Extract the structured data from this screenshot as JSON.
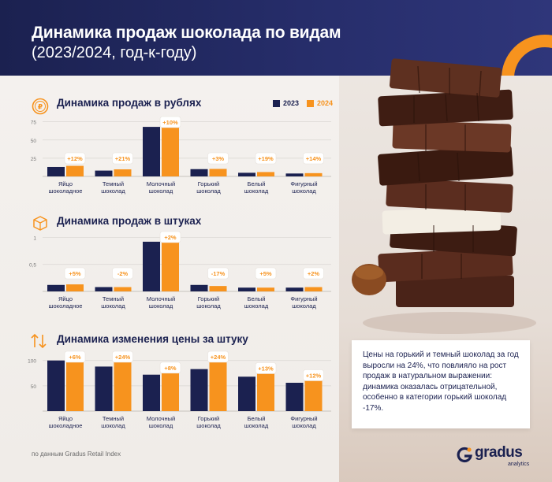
{
  "header": {
    "title_line1": "Динамика продаж шоколада по видам",
    "title_line2": "(2023/2024, год-к-году)"
  },
  "legend": {
    "label_2023": "2023",
    "label_2024": "2024"
  },
  "colors": {
    "navy": "#1b2150",
    "orange": "#f7931e",
    "grid": "#d9d6d2",
    "badge_text": "#f7931e"
  },
  "icons": [
    "ruble-coin-icon",
    "box-icon",
    "price-arrows-icon",
    "gradus-logo-icon"
  ],
  "chart_data": [
    {
      "type": "bar",
      "title": "Динамика продаж в рублях",
      "categories": [
        "Яйцо шоколадное",
        "Темный шоколад",
        "Молочный шоколад",
        "Горький шоколад",
        "Белый шоколад",
        "Фигурный шоколад"
      ],
      "category_lines": [
        [
          "Яйцо",
          "шоколадное"
        ],
        [
          "Темный",
          "шоколад"
        ],
        [
          "Молочный",
          "шоколад"
        ],
        [
          "Горький",
          "шоколад"
        ],
        [
          "Белый",
          "шоколад"
        ],
        [
          "Фигурный",
          "шоколад"
        ]
      ],
      "series": [
        {
          "name": "2023",
          "values": [
            13,
            8,
            68,
            10,
            5,
            4
          ]
        },
        {
          "name": "2024",
          "values": [
            14.5,
            9.7,
            75,
            10.3,
            6,
            4.5
          ]
        }
      ],
      "badges": [
        "+12%",
        "+21%",
        "+10%",
        "+3%",
        "+19%",
        "+14%"
      ],
      "yticks": [
        "75",
        "50",
        "25"
      ],
      "ytick_values": [
        75,
        50,
        25
      ],
      "ylim": [
        0,
        80
      ],
      "grid": true
    },
    {
      "type": "bar",
      "title": "Динамика продаж в штуках",
      "categories": [
        "Яйцо шоколадное",
        "Темный шоколад",
        "Молочный шоколад",
        "Горький шоколад",
        "Белый шоколад",
        "Фигурный шоколад"
      ],
      "category_lines": [
        [
          "Яйцо",
          "шоколадное"
        ],
        [
          "Темный",
          "шоколад"
        ],
        [
          "Молочный",
          "шоколад"
        ],
        [
          "Горький",
          "шоколад"
        ],
        [
          "Белый",
          "шоколад"
        ],
        [
          "Фигурный",
          "шоколад"
        ]
      ],
      "series": [
        {
          "name": "2023",
          "values": [
            0.12,
            0.08,
            0.92,
            0.12,
            0.07,
            0.07
          ]
        },
        {
          "name": "2024",
          "values": [
            0.13,
            0.08,
            0.94,
            0.1,
            0.07,
            0.08
          ]
        }
      ],
      "badges": [
        "+5%",
        "-2%",
        "+2%",
        "-17%",
        "+5%",
        "+2%"
      ],
      "yticks": [
        "1",
        "0,5"
      ],
      "ytick_values": [
        1,
        0.5
      ],
      "ylim": [
        0,
        1.05
      ],
      "grid": true
    },
    {
      "type": "bar",
      "title": "Динамика изменения цены за штуку",
      "categories": [
        "Яйцо шоколадное",
        "Темный шоколад",
        "Молочный шоколад",
        "Горький шоколад",
        "Белый шоколад",
        "Фигурный шоколад"
      ],
      "category_lines": [
        [
          "Яйцо",
          "шоколадное"
        ],
        [
          "Темный",
          "шоколад"
        ],
        [
          "Молочный",
          "шоколад"
        ],
        [
          "Горький",
          "шоколад"
        ],
        [
          "Белый",
          "шоколад"
        ],
        [
          "Фигурный",
          "шоколад"
        ]
      ],
      "series": [
        {
          "name": "2023",
          "values": [
            100,
            88,
            72,
            83,
            68,
            56
          ]
        },
        {
          "name": "2024",
          "values": [
            106,
            109,
            78,
            103,
            77,
            63
          ]
        }
      ],
      "badges": [
        "+6%",
        "+24%",
        "+8%",
        "+24%",
        "+13%",
        "+12%"
      ],
      "yticks": [
        "100",
        "50"
      ],
      "ytick_values": [
        100,
        50
      ],
      "ylim": [
        0,
        112
      ],
      "grid": true
    }
  ],
  "note": {
    "text": "Цены на горький и темный шоколад за год выросли на 24%, что повлияло на рост продаж в натуральном выражении: динамика оказалась отрицательной, особенно в категории горький шоколад -17%."
  },
  "footer": {
    "source": "по данным Gradus Retail Index"
  },
  "logo": {
    "name": "gradus",
    "sub": "analytics"
  }
}
